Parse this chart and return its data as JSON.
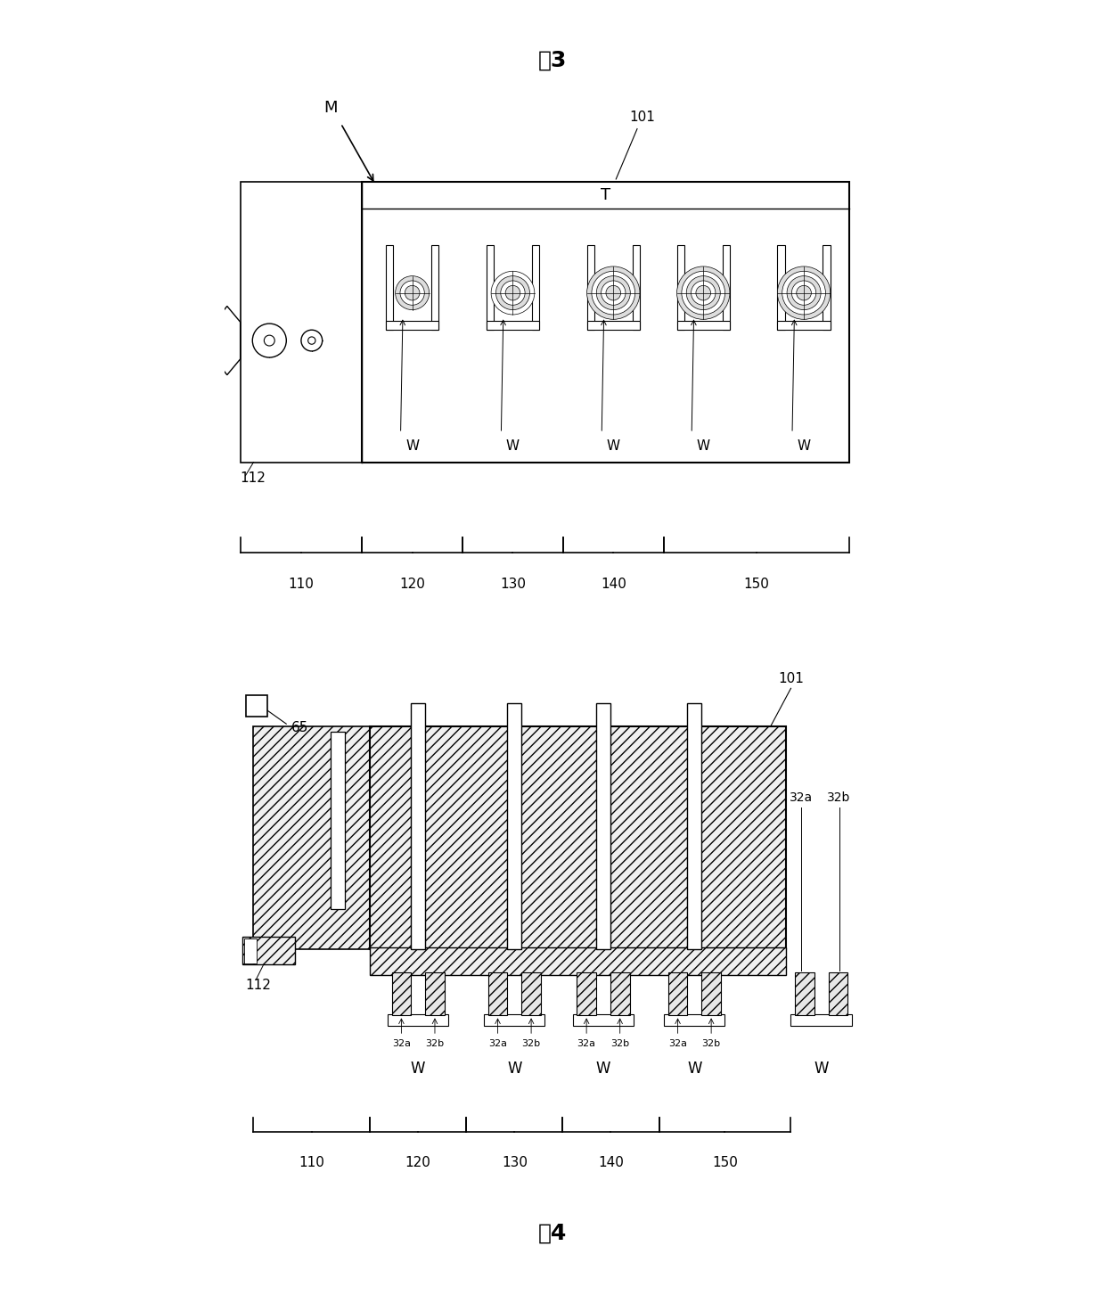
{
  "title_fig3": "图3",
  "title_fig4": "图4",
  "bg_color": "#ffffff",
  "line_color": "#000000",
  "section_labels": [
    "110",
    "120",
    "130",
    "140",
    "150"
  ],
  "label_101": "101",
  "label_112": "112",
  "label_T": "T",
  "label_M": "M",
  "label_W": "W",
  "label_65": "65",
  "label_32a": "32a",
  "label_32b": "32b"
}
